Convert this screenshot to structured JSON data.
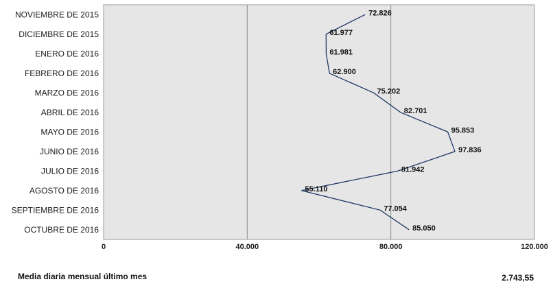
{
  "chart_data": {
    "type": "line",
    "orientation": "horizontal",
    "categories": [
      "NOVIEMBRE DE 2015",
      "DICIEMBRE DE 2015",
      "ENERO DE 2016",
      "FEBRERO DE 2016",
      "MARZO DE 2016",
      "ABRIL DE 2016",
      "MAYO DE 2016",
      "JUNIO DE 2016",
      "JULIO DE 2016",
      "AGOSTO DE 2016",
      "SEPTIEMBRE DE 2016",
      "OCTUBRE DE 2016"
    ],
    "values": [
      72826,
      61977,
      61981,
      62900,
      75202,
      82701,
      95853,
      97836,
      81942,
      55110,
      77054,
      85050
    ],
    "value_labels": [
      "72.826",
      "61.977",
      "61.981",
      "62.900",
      "75.202",
      "82.701",
      "95.853",
      "97.836",
      "81.942",
      "55.110",
      "77.054",
      "85.050"
    ],
    "xlim": [
      0,
      120000
    ],
    "x_ticks": [
      0,
      40000,
      80000,
      120000
    ],
    "x_tick_labels": [
      "0",
      "40.000",
      "80.000",
      "120.000"
    ],
    "grid": "vertical",
    "plot_background": "#e6e6e6",
    "line_color": "#1f3864"
  },
  "footer": {
    "label": "Media diaria mensual último mes",
    "value": "2.743,55"
  }
}
